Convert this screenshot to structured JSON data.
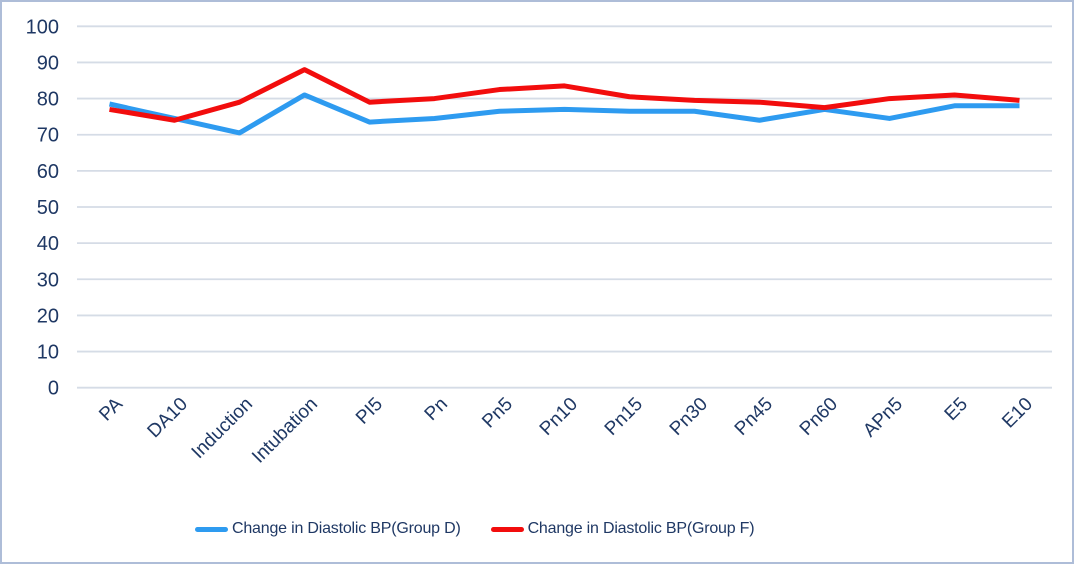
{
  "chart_data": {
    "type": "line",
    "title": "",
    "xlabel": "",
    "ylabel": "",
    "categories": [
      "PA",
      "DA10",
      "Induction",
      "Intubation",
      "PI5",
      "Pn",
      "Pn5",
      "Pn10",
      "Pn15",
      "Pn30",
      "Pn45",
      "Pn60",
      "APn5",
      "E5",
      "E10"
    ],
    "series": [
      {
        "name": "Change in Diastolic BP(Group D)",
        "color": "#2e9bf0",
        "values": [
          78.5,
          74.5,
          70.5,
          81,
          73.5,
          74.5,
          76.5,
          77,
          76.5,
          76.5,
          74,
          77,
          74.5,
          78,
          78
        ]
      },
      {
        "name": "Change in Diastolic BP(Group F)",
        "color": "#f20d0d",
        "values": [
          77,
          74,
          79,
          88,
          79,
          80,
          82.5,
          83.5,
          80.5,
          79.5,
          79,
          77.5,
          80,
          81,
          79.5
        ]
      }
    ],
    "ylim": [
      0,
      100
    ],
    "ytick_step": 10,
    "y_tick_labels": [
      "0",
      "10",
      "20",
      "30",
      "40",
      "50",
      "60",
      "70",
      "80",
      "90",
      "100"
    ],
    "grid": "horizontal",
    "legend_position": "bottom",
    "colors": {
      "axis_text": "#1f3864",
      "gridline": "#d5dce6",
      "chart_border": "#aebdd8",
      "background": "#ffffff"
    }
  }
}
